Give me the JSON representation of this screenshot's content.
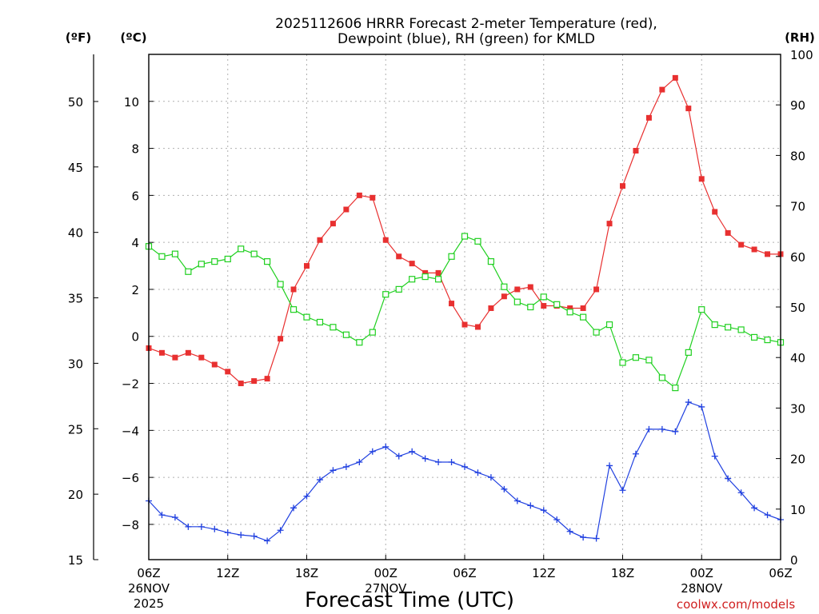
{
  "chart_data": {
    "type": "line",
    "title": "2025112606 HRRR Forecast 2-meter Temperature (red),",
    "subtitle": "Dewpoint (blue), RH (green) for KMLD",
    "xlabel": "Forecast Time (UTC)",
    "credit": "coolwx.com/models",
    "units": {
      "fahrenheit": "(ºF)",
      "celsius": "(ºC)",
      "rh": "(RH)"
    },
    "x_start_hour": 6,
    "x_range_hours": [
      6,
      54
    ],
    "ylim_c": [
      -9.5,
      12
    ],
    "ylim_f": [
      15,
      53.6
    ],
    "ylim_rh": [
      0,
      100
    ],
    "ticks_c": [
      -8,
      -6,
      -4,
      -2,
      0,
      2,
      4,
      6,
      8,
      10
    ],
    "ticks_c_labels": [
      "−8",
      "−6",
      "−4",
      "−2",
      "0",
      "2",
      "4",
      "6",
      "8",
      "10"
    ],
    "ticks_f": [
      15,
      20,
      25,
      30,
      35,
      40,
      45,
      50
    ],
    "ticks_f_labels": [
      "15",
      "20",
      "25",
      "30",
      "35",
      "40",
      "45",
      "50"
    ],
    "ticks_rh": [
      0,
      10,
      20,
      30,
      40,
      50,
      60,
      70,
      80,
      90,
      100
    ],
    "ticks_rh_labels": [
      "0",
      "10",
      "20",
      "30",
      "40",
      "50",
      "60",
      "70",
      "80",
      "90",
      "100"
    ],
    "x_ticks": [
      {
        "hour": 6,
        "label": "06Z",
        "date": "26NOV",
        "year": "2025"
      },
      {
        "hour": 12,
        "label": "12Z",
        "date": "",
        "year": ""
      },
      {
        "hour": 18,
        "label": "18Z",
        "date": "",
        "year": ""
      },
      {
        "hour": 24,
        "label": "00Z",
        "date": "27NOV",
        "year": ""
      },
      {
        "hour": 30,
        "label": "06Z",
        "date": "",
        "year": ""
      },
      {
        "hour": 36,
        "label": "12Z",
        "date": "",
        "year": ""
      },
      {
        "hour": 42,
        "label": "18Z",
        "date": "",
        "year": ""
      },
      {
        "hour": 48,
        "label": "00Z",
        "date": "28NOV",
        "year": ""
      },
      {
        "hour": 54,
        "label": "06Z",
        "date": "",
        "year": ""
      }
    ],
    "series": [
      {
        "name": "Temperature",
        "unit": "C",
        "color": "#e83030",
        "marker": "filled-square",
        "values": [
          -0.5,
          -0.7,
          -0.9,
          -0.7,
          -0.9,
          -1.2,
          -1.5,
          -2.0,
          -1.9,
          -1.8,
          -0.1,
          2.0,
          3.0,
          4.1,
          4.8,
          5.4,
          6.0,
          5.9,
          4.1,
          3.4,
          3.1,
          2.7,
          2.7,
          1.4,
          0.5,
          0.4,
          1.2,
          1.7,
          2.0,
          2.1,
          1.3,
          1.3,
          1.2,
          1.2,
          2.0,
          4.8,
          6.4,
          7.9,
          9.3,
          10.5,
          11.0,
          9.7,
          6.7,
          5.3,
          4.4,
          3.9,
          3.7,
          3.5,
          3.5
        ]
      },
      {
        "name": "Dewpoint",
        "unit": "C",
        "color": "#2040e0",
        "marker": "plus",
        "values": [
          -7.0,
          -7.6,
          -7.7,
          -8.1,
          -8.1,
          -8.2,
          -8.35,
          -8.45,
          -8.5,
          -8.7,
          -8.25,
          -7.3,
          -6.8,
          -6.1,
          -5.7,
          -5.55,
          -5.35,
          -4.9,
          -4.7,
          -5.1,
          -4.9,
          -5.2,
          -5.35,
          -5.35,
          -5.55,
          -5.8,
          -6.0,
          -6.5,
          -7.0,
          -7.2,
          -7.4,
          -7.8,
          -8.3,
          -8.55,
          -8.6,
          -5.5,
          -6.55,
          -5.0,
          -3.95,
          -3.95,
          -4.05,
          -2.8,
          -3.0,
          -5.1,
          -6.05,
          -6.65,
          -7.3,
          -7.6,
          -7.8
        ]
      },
      {
        "name": "RH",
        "unit": "%",
        "color": "#20d020",
        "marker": "open-square",
        "values": [
          62,
          60,
          60.5,
          57,
          58.5,
          59,
          59.5,
          61.5,
          60.5,
          59,
          54.5,
          49.5,
          48,
          47,
          46,
          44.5,
          43,
          45,
          52.5,
          53.5,
          55.5,
          56,
          55.5,
          60,
          64,
          63,
          59,
          54,
          51,
          50,
          52,
          50.5,
          49,
          48,
          45,
          46.5,
          39,
          40,
          39.5,
          36,
          34,
          41,
          49.5,
          46.5,
          46,
          45.5,
          44,
          43.5,
          43
        ]
      }
    ]
  }
}
